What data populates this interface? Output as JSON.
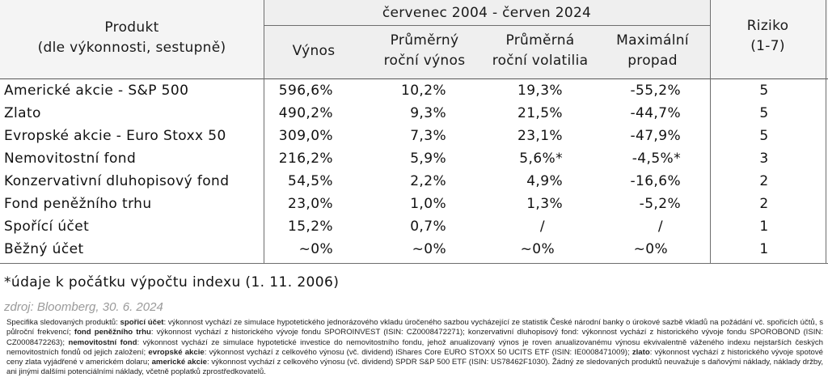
{
  "header": {
    "product_line1": "Produkt",
    "product_line2": "(dle výkonnosti, sestupně)",
    "period": "červenec 2004 - červen 2024",
    "col_return": "Výnos",
    "col_avg_return_line1": "Průměrný",
    "col_avg_return_line2": "roční výnos",
    "col_avg_vol_line1": "Průměrná",
    "col_avg_vol_line2": "roční volatilia",
    "col_maxdd_line1": "Maximální",
    "col_maxdd_line2": "propad",
    "col_risk_line1": "Riziko",
    "col_risk_line2": "(1-7)"
  },
  "rows": [
    {
      "name": "Americké akcie - S&P 500",
      "return": "596,6%",
      "avg_return": "10,2%",
      "volatility": "19,3%",
      "max_drawdown": "-55,2%",
      "risk": "5"
    },
    {
      "name": "Zlato",
      "return": "490,2%",
      "avg_return": "9,3%",
      "volatility": "21,5%",
      "max_drawdown": "-44,7%",
      "risk": "5"
    },
    {
      "name": "Evropské akcie - Euro Stoxx 50",
      "return": "309,0%",
      "avg_return": "7,3%",
      "volatility": "23,1%",
      "max_drawdown": "-47,9%",
      "risk": "5"
    },
    {
      "name": "Nemovitostní fond",
      "return": "216,2%",
      "avg_return": "5,9%",
      "volatility": "5,6%*",
      "max_drawdown": "-4,5%*",
      "risk": "3"
    },
    {
      "name": "Konzervativní dluhopisový fond",
      "return": "54,5%",
      "avg_return": "2,2%",
      "volatility": "4,9%",
      "max_drawdown": "-16,6%",
      "risk": "2"
    },
    {
      "name": "Fond peněžního trhu",
      "return": "23,0%",
      "avg_return": "1,0%",
      "volatility": "1,3%",
      "max_drawdown": "-5,2%",
      "risk": "2"
    },
    {
      "name": "Spořící účet",
      "return": "15,2%",
      "avg_return": "0,7%",
      "volatility": "/",
      "max_drawdown": "/",
      "risk": "1"
    },
    {
      "name": "Běžný účet",
      "return": "~0%",
      "avg_return": "~0%",
      "volatility": "~0%",
      "max_drawdown": "~0%",
      "risk": "1"
    }
  ],
  "footnote": "*údaje k počátku výpočtu indexu (1. 11. 2006)",
  "source": "zdroj: Bloomberg, 30. 6. 2024",
  "specs": {
    "t1": "Specifika sledovaných produktů: ",
    "b1": "spořicí účet",
    "t2": ": výkonnost vychází ze simulace hypotetického jednorázového vkladu úročeného sazbou vycházející ze statistik České národní banky o úrokové sazbě vkladů na požádání vč. spořicích účtů, s půlroční frekvencí; ",
    "b2": "fond peněžního trhu",
    "t3": ": výkonnost vychází z historického vývoje fondu SPOROINVEST (ISIN: CZ0008472271); konzervativní dluhopisový fond: výkonnost vychází z historického vývoje fondu SPOROBOND (ISIN: CZ0008472263); ",
    "b3": "nemovitostní fond",
    "t4": ": výkonnost vychází ze simulace hypotetické investice do nemovitostního fondu, jehož anualizovaný výnos je roven anualizovanému výnosu ekvivalentně váženého indexu nejstarších českých nemovitostních fondů od jejich založení; ",
    "b4": "evropské akcie",
    "t5": ": výkonnost vychází z celkového výnosu (vč. dividend) iShares Core EURO STOXX 50 UCITS ETF (ISIN: IE0008471009); ",
    "b5": "zlato",
    "t6": ": výkonnost vychází z historického vývoje spotové ceny zlata vyjádřené v americkém dolaru; ",
    "b6": "americké akcie",
    "t7": ": výkonnost vychází z celkového výnosu (vč. dividend) SPDR S&P 500 ETF (ISIN: US78462F1030). Žádný ze sledovaných produktů neuvažuje s daňovými náklady, náklady držby, ani jinými dalšími potenciálními náklady, včetně poplatků zprostředkovatelů."
  }
}
